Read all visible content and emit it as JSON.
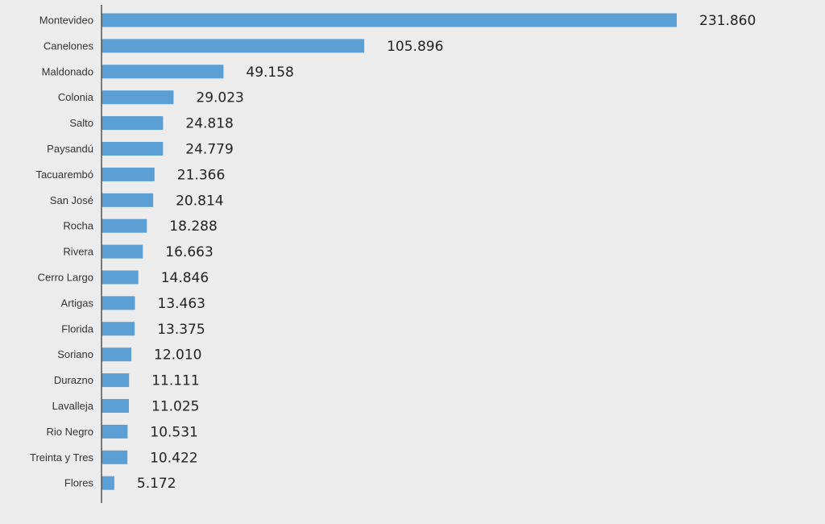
{
  "chart_data": {
    "type": "bar",
    "orientation": "horizontal",
    "title": "",
    "xlabel": "",
    "ylabel": "",
    "categories": [
      "Montevideo",
      "Canelones",
      "Maldonado",
      "Colonia",
      "Salto",
      "Paysandú",
      "Tacuarembó",
      "San José",
      "Rocha",
      "Rivera",
      "Cerro Largo",
      "Artigas",
      "Florida",
      "Soriano",
      "Durazno",
      "Lavalleja",
      "Rio Negro",
      "Treinta y Tres",
      "Flores"
    ],
    "values": [
      231860,
      105896,
      49158,
      29023,
      24818,
      24779,
      21366,
      20814,
      18288,
      16663,
      14846,
      13463,
      13375,
      12010,
      11111,
      11025,
      10531,
      10422,
      5172
    ],
    "value_labels": [
      "231.860",
      "105.896",
      "49.158",
      "29.023",
      "24.818",
      "24.779",
      "21.366",
      "20.814",
      "18.288",
      "16.663",
      "14.846",
      "13.463",
      "13.375",
      "12.010",
      "11.111",
      "11.025",
      "10.531",
      "10.422",
      "5.172"
    ],
    "xlim": [
      0,
      231860
    ],
    "bar_color": "#5b9fd4",
    "axis_color": "#555555",
    "grid": false,
    "legend": "none"
  }
}
